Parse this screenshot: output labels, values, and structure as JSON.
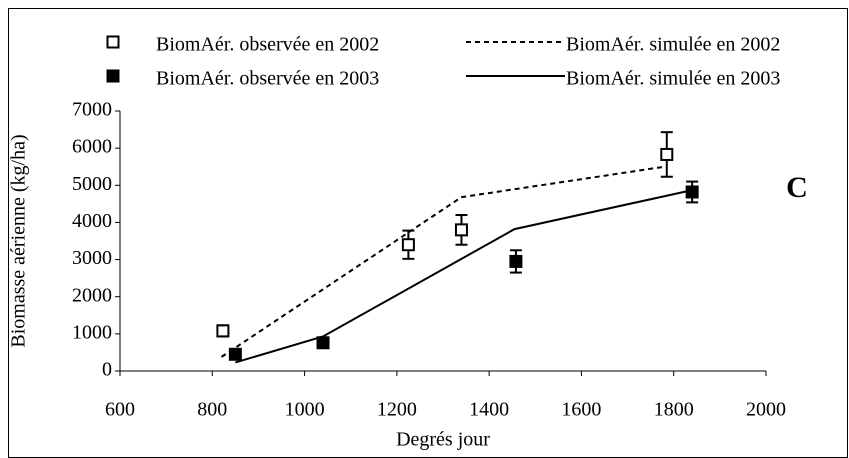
{
  "chart_data": {
    "type": "scatter",
    "xlabel": "Degrés jour",
    "ylabel": "Biomasse aérienne (kg/ha)",
    "annotation": "C",
    "xlim": [
      600,
      2000
    ],
    "xticks": [
      600,
      800,
      1000,
      1200,
      1400,
      1600,
      1800,
      2000
    ],
    "ylim": [
      0,
      7000
    ],
    "yticks": [
      0,
      1000,
      2000,
      3000,
      4000,
      5000,
      6000,
      7000
    ],
    "grid": false,
    "series": [
      {
        "name": "BiomAér. observée en 2002",
        "color": "#000000",
        "marker": "open-square",
        "x": [
          823,
          1225,
          1340,
          1785
        ],
        "values": [
          1080,
          3400,
          3800,
          5830
        ],
        "errors": [
          150,
          380,
          400,
          600
        ]
      },
      {
        "name": "BiomAér. simulée en 2002",
        "color": "#000000",
        "line": "dashed",
        "x": [
          820,
          1340,
          1780
        ],
        "values": [
          380,
          4680,
          5500
        ]
      },
      {
        "name": "BiomAér. observée en 2003",
        "color": "#000000",
        "marker": "filled-square",
        "x": [
          850,
          1040,
          1458,
          1840
        ],
        "values": [
          450,
          760,
          2950,
          4820
        ],
        "errors": [
          110,
          120,
          300,
          280
        ]
      },
      {
        "name": "BiomAér. simulée en 2003",
        "color": "#000000",
        "line": "solid",
        "x": [
          850,
          1040,
          1455,
          1840
        ],
        "values": [
          230,
          930,
          3820,
          4870
        ]
      }
    ]
  }
}
